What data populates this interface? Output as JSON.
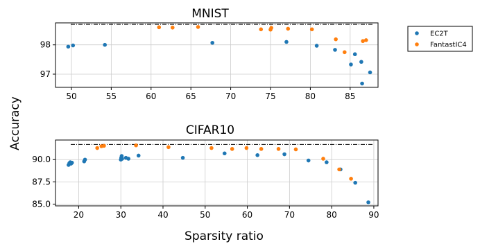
{
  "colors": {
    "EC2T": "#1f77b4",
    "FantastIC4": "#ff7f0e"
  },
  "ylabel": "Accuracy",
  "xlabel": "Sparsity ratio",
  "legend": {
    "placement": "right",
    "entries": [
      "EC2T",
      "FantastIC4"
    ]
  },
  "chart_data": [
    {
      "type": "scatter",
      "title": "MNIST",
      "xlim": [
        48,
        88.5
      ],
      "ylim": [
        96.55,
        98.75
      ],
      "xticks": [
        50,
        55,
        60,
        65,
        70,
        75,
        80,
        85
      ],
      "yticks": [
        97,
        98
      ],
      "grid": true,
      "reference_line": 98.7,
      "series": [
        {
          "name": "EC2T",
          "points": [
            [
              49.6,
              97.94
            ],
            [
              50.2,
              97.98
            ],
            [
              54.2,
              98.0
            ],
            [
              67.7,
              98.07
            ],
            [
              77.0,
              98.1
            ],
            [
              80.8,
              97.97
            ],
            [
              83.1,
              97.83
            ],
            [
              85.1,
              97.33
            ],
            [
              85.6,
              97.68
            ],
            [
              86.4,
              97.42
            ],
            [
              86.5,
              96.68
            ],
            [
              87.5,
              97.06
            ]
          ]
        },
        {
          "name": "FantastIC4",
          "points": [
            [
              61.0,
              98.6
            ],
            [
              62.7,
              98.59
            ],
            [
              65.9,
              98.61
            ],
            [
              73.8,
              98.53
            ],
            [
              75.0,
              98.52
            ],
            [
              75.1,
              98.58
            ],
            [
              77.2,
              98.55
            ],
            [
              80.2,
              98.53
            ],
            [
              83.2,
              98.19
            ],
            [
              84.3,
              97.75
            ],
            [
              86.6,
              98.13
            ],
            [
              87.0,
              98.16
            ]
          ]
        }
      ]
    },
    {
      "type": "scatter",
      "title": "CIFAR10",
      "xlim": [
        14.5,
        91
      ],
      "ylim": [
        84.8,
        92.2
      ],
      "xticks": [
        20,
        30,
        40,
        50,
        60,
        70,
        80,
        90
      ],
      "yticks": [
        85.0,
        87.5,
        90.0
      ],
      "ytick_labels": [
        "85.0",
        "87.5",
        "90.0"
      ],
      "grid": true,
      "reference_line": 91.7,
      "series": [
        {
          "name": "EC2T",
          "points": [
            [
              17.6,
              89.4
            ],
            [
              17.8,
              89.6
            ],
            [
              18.0,
              89.7
            ],
            [
              18.2,
              89.55
            ],
            [
              18.4,
              89.65
            ],
            [
              21.3,
              89.8
            ],
            [
              21.5,
              90.0
            ],
            [
              30.0,
              90.0
            ],
            [
              30.1,
              90.2
            ],
            [
              30.2,
              90.4
            ],
            [
              30.3,
              90.1
            ],
            [
              31.2,
              90.2
            ],
            [
              31.8,
              90.1
            ],
            [
              34.2,
              90.45
            ],
            [
              44.7,
              90.2
            ],
            [
              54.6,
              90.7
            ],
            [
              62.4,
              90.5
            ],
            [
              68.8,
              90.6
            ],
            [
              74.5,
              89.9
            ],
            [
              78.8,
              89.7
            ],
            [
              82.1,
              88.9
            ],
            [
              85.6,
              87.4
            ],
            [
              88.7,
              85.2
            ]
          ]
        },
        {
          "name": "FantastIC4",
          "points": [
            [
              24.4,
              91.3
            ],
            [
              25.4,
              91.5
            ],
            [
              26.0,
              91.55
            ],
            [
              33.6,
              91.6
            ],
            [
              41.3,
              91.4
            ],
            [
              51.5,
              91.3
            ],
            [
              56.4,
              91.2
            ],
            [
              59.8,
              91.3
            ],
            [
              63.3,
              91.2
            ],
            [
              67.4,
              91.2
            ],
            [
              71.5,
              91.15
            ],
            [
              78.0,
              90.1
            ],
            [
              81.8,
              88.9
            ],
            [
              84.6,
              87.85
            ]
          ]
        }
      ]
    }
  ]
}
